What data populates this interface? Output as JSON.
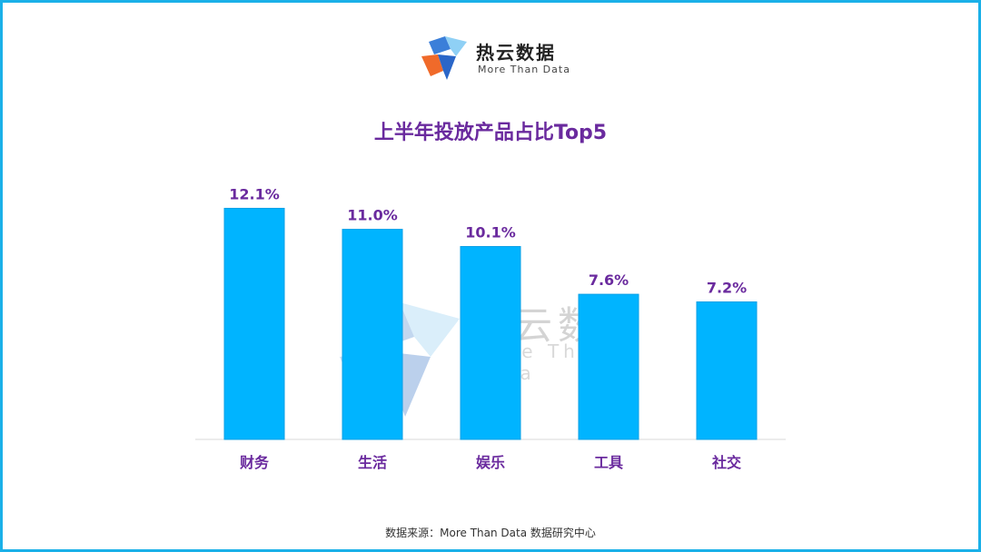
{
  "brand": {
    "name": "热云数据",
    "tagline": "More Than Data"
  },
  "source": "数据来源：More Than Data 数据研究中心",
  "colors": {
    "bar": "#00b4ff",
    "label": "#6a2a9e",
    "frame": "#1ab0e8",
    "axis": "#d9d9d9"
  },
  "chart_data": {
    "type": "bar",
    "title": "上半年投放产品占比Top5",
    "categories": [
      "财务",
      "生活",
      "娱乐",
      "工具",
      "社交"
    ],
    "values": [
      12.1,
      11.0,
      10.1,
      7.6,
      7.2
    ],
    "value_labels": [
      "12.1%",
      "11.0%",
      "10.1%",
      "7.6%",
      "7.2%"
    ],
    "unit": "%",
    "ylim": [
      0,
      13.5
    ],
    "grid": false,
    "legend": "none"
  }
}
